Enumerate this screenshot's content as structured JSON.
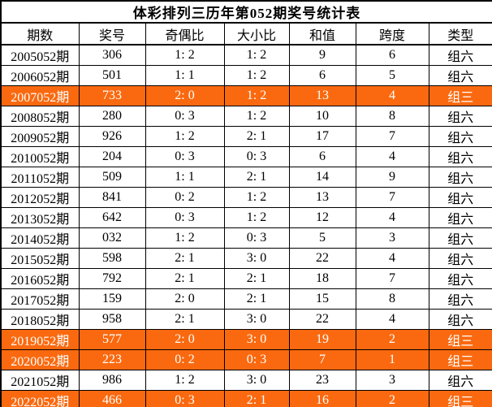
{
  "title": "体彩排列三历年第052期奖号统计表",
  "table": {
    "headers": [
      "期数",
      "奖号",
      "奇偶比",
      "大小比",
      "和值",
      "跨度",
      "类型"
    ],
    "rows": [
      {
        "period": "2005052期",
        "number": "306",
        "odd_even": "1: 2",
        "big_small": "1: 2",
        "sum": "9",
        "span": "6",
        "type": "组六",
        "highlight": false
      },
      {
        "period": "2006052期",
        "number": "501",
        "odd_even": "1: 1",
        "big_small": "1: 2",
        "sum": "6",
        "span": "5",
        "type": "组六",
        "highlight": false
      },
      {
        "period": "2007052期",
        "number": "733",
        "odd_even": "2: 0",
        "big_small": "1: 2",
        "sum": "13",
        "span": "4",
        "type": "组三",
        "highlight": true
      },
      {
        "period": "2008052期",
        "number": "280",
        "odd_even": "0: 3",
        "big_small": "1: 2",
        "sum": "10",
        "span": "8",
        "type": "组六",
        "highlight": false
      },
      {
        "period": "2009052期",
        "number": "926",
        "odd_even": "1: 2",
        "big_small": "2: 1",
        "sum": "17",
        "span": "7",
        "type": "组六",
        "highlight": false
      },
      {
        "period": "2010052期",
        "number": "204",
        "odd_even": "0: 3",
        "big_small": "0: 3",
        "sum": "6",
        "span": "4",
        "type": "组六",
        "highlight": false
      },
      {
        "period": "2011052期",
        "number": "509",
        "odd_even": "1: 1",
        "big_small": "2: 1",
        "sum": "14",
        "span": "9",
        "type": "组六",
        "highlight": false
      },
      {
        "period": "2012052期",
        "number": "841",
        "odd_even": "0: 2",
        "big_small": "1: 2",
        "sum": "13",
        "span": "7",
        "type": "组六",
        "highlight": false
      },
      {
        "period": "2013052期",
        "number": "642",
        "odd_even": "0: 3",
        "big_small": "1: 2",
        "sum": "12",
        "span": "4",
        "type": "组六",
        "highlight": false
      },
      {
        "period": "2014052期",
        "number": "032",
        "odd_even": "1: 2",
        "big_small": "0: 3",
        "sum": "5",
        "span": "3",
        "type": "组六",
        "highlight": false
      },
      {
        "period": "2015052期",
        "number": "598",
        "odd_even": "2: 1",
        "big_small": "3: 0",
        "sum": "22",
        "span": "4",
        "type": "组六",
        "highlight": false
      },
      {
        "period": "2016052期",
        "number": "792",
        "odd_even": "2: 1",
        "big_small": "2: 1",
        "sum": "18",
        "span": "7",
        "type": "组六",
        "highlight": false
      },
      {
        "period": "2017052期",
        "number": "159",
        "odd_even": "2: 0",
        "big_small": "2: 1",
        "sum": "15",
        "span": "8",
        "type": "组六",
        "highlight": false
      },
      {
        "period": "2018052期",
        "number": "958",
        "odd_even": "2: 1",
        "big_small": "3: 0",
        "sum": "22",
        "span": "4",
        "type": "组六",
        "highlight": false
      },
      {
        "period": "2019052期",
        "number": "577",
        "odd_even": "2: 0",
        "big_small": "3: 0",
        "sum": "19",
        "span": "2",
        "type": "组三",
        "highlight": true
      },
      {
        "period": "2020052期",
        "number": "223",
        "odd_even": "0: 2",
        "big_small": "0: 3",
        "sum": "7",
        "span": "1",
        "type": "组三",
        "highlight": true
      },
      {
        "period": "2021052期",
        "number": "986",
        "odd_even": "1: 2",
        "big_small": "3: 0",
        "sum": "23",
        "span": "3",
        "type": "组六",
        "highlight": false
      },
      {
        "period": "2022052期",
        "number": "466",
        "odd_even": "0: 3",
        "big_small": "2: 1",
        "sum": "16",
        "span": "2",
        "type": "组三",
        "highlight": true
      }
    ]
  },
  "colors": {
    "highlight_bg": "#fa690f",
    "highlight_text": "#ffffff",
    "normal_text": "#000000",
    "border": "#000000",
    "background": "#ffffff"
  },
  "chart_data": {
    "type": "table",
    "title": "体彩排列三历年第052期奖号统计表",
    "columns": [
      "期数",
      "奖号",
      "奇偶比",
      "大小比",
      "和值",
      "跨度",
      "类型"
    ],
    "rows": [
      [
        "2005052期",
        "306",
        "1: 2",
        "1: 2",
        9,
        6,
        "组六"
      ],
      [
        "2006052期",
        "501",
        "1: 1",
        "1: 2",
        6,
        5,
        "组六"
      ],
      [
        "2007052期",
        "733",
        "2: 0",
        "1: 2",
        13,
        4,
        "组三"
      ],
      [
        "2008052期",
        "280",
        "0: 3",
        "1: 2",
        10,
        8,
        "组六"
      ],
      [
        "2009052期",
        "926",
        "1: 2",
        "2: 1",
        17,
        7,
        "组六"
      ],
      [
        "2010052期",
        "204",
        "0: 3",
        "0: 3",
        6,
        4,
        "组六"
      ],
      [
        "2011052期",
        "509",
        "1: 1",
        "2: 1",
        14,
        9,
        "组六"
      ],
      [
        "2012052期",
        "841",
        "0: 2",
        "1: 2",
        13,
        7,
        "组六"
      ],
      [
        "2013052期",
        "642",
        "0: 3",
        "1: 2",
        12,
        4,
        "组六"
      ],
      [
        "2014052期",
        "032",
        "1: 2",
        "0: 3",
        5,
        3,
        "组六"
      ],
      [
        "2015052期",
        "598",
        "2: 1",
        "3: 0",
        22,
        4,
        "组六"
      ],
      [
        "2016052期",
        "792",
        "2: 1",
        "2: 1",
        18,
        7,
        "组六"
      ],
      [
        "2017052期",
        "159",
        "2: 0",
        "2: 1",
        15,
        8,
        "组六"
      ],
      [
        "2018052期",
        "958",
        "2: 1",
        "3: 0",
        22,
        4,
        "组六"
      ],
      [
        "2019052期",
        "577",
        "2: 0",
        "3: 0",
        19,
        2,
        "组三"
      ],
      [
        "2020052期",
        "223",
        "0: 2",
        "0: 3",
        7,
        1,
        "组三"
      ],
      [
        "2021052期",
        "986",
        "1: 2",
        "3: 0",
        23,
        3,
        "组六"
      ],
      [
        "2022052期",
        "466",
        "0: 3",
        "2: 1",
        16,
        2,
        "组三"
      ]
    ],
    "highlighted_row_indices": [
      2,
      14,
      15,
      17
    ],
    "highlight_meaning": "类型为组三的期号行以橙色高亮显示"
  }
}
